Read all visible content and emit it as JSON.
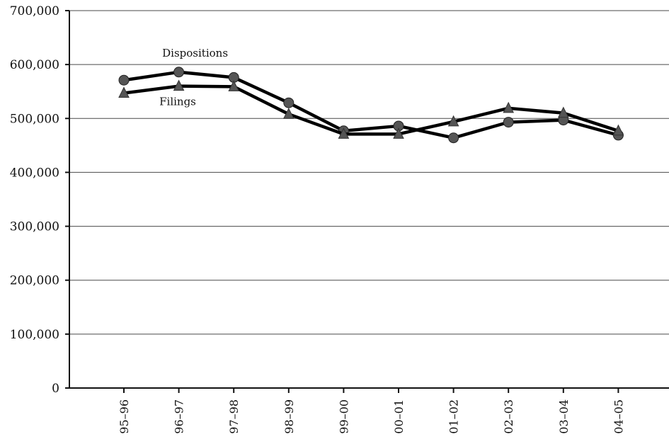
{
  "chart_data": {
    "type": "line",
    "title": "",
    "xlabel": "",
    "ylabel": "",
    "categories": [
      "95–96",
      "96–97",
      "97–98",
      "98–99",
      "99–00",
      "00–01",
      "01–02",
      "02–03",
      "03–04",
      "04–05"
    ],
    "ylim": [
      0,
      700000
    ],
    "yticks": [
      0,
      100000,
      200000,
      300000,
      400000,
      500000,
      600000,
      700000
    ],
    "ytick_labels": [
      "0",
      "100,000",
      "200,000",
      "300,000",
      "400,000",
      "500,000",
      "600,000",
      "700,000"
    ],
    "grid": true,
    "series": [
      {
        "name": "Dispositions",
        "marker": "circle",
        "values": [
          571000,
          586000,
          576000,
          529000,
          477000,
          486000,
          464000,
          493000,
          497000,
          469000
        ]
      },
      {
        "name": "Filings",
        "marker": "triangle",
        "values": [
          547000,
          560000,
          559000,
          508000,
          471000,
          471000,
          494000,
          519000,
          510000,
          477000
        ]
      }
    ],
    "colors": {
      "line": "#000000",
      "marker": "#555555",
      "grid": "#4a4a4a"
    }
  }
}
